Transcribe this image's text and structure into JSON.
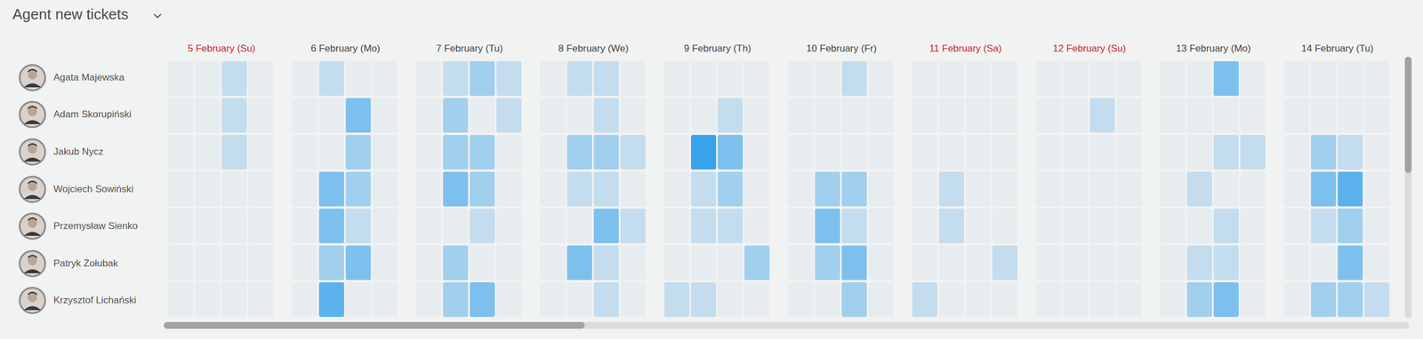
{
  "chart_data": {
    "type": "heatmap",
    "title": "Agent new tickets",
    "rows": [
      "Agata Majewska",
      "Adam Skorupiński",
      "Jakub Nycz",
      "Wojciech Sowiński",
      "Przemysław Sienko",
      "Patryk Żołubak",
      "Krzysztof Lichański"
    ],
    "columns": [
      {
        "label": "5 February (Su)",
        "color": "#c62828"
      },
      {
        "label": "6 February (Mo)",
        "color": "#444444"
      },
      {
        "label": "7 February (Tu)",
        "color": "#444444"
      },
      {
        "label": "8 February (We)",
        "color": "#444444"
      },
      {
        "label": "9 February (Th)",
        "color": "#444444"
      },
      {
        "label": "10 February (Fr)",
        "color": "#444444"
      },
      {
        "label": "11 February (Sa)",
        "color": "#c62828"
      },
      {
        "label": "12 February (Su)",
        "color": "#c62828"
      },
      {
        "label": "13 February (Mo)",
        "color": "#444444"
      },
      {
        "label": "14 February (Tu)",
        "color": "#444444"
      }
    ],
    "values": [
      [
        [
          0,
          0,
          1,
          0
        ],
        [
          0,
          1,
          0,
          0
        ],
        [
          0,
          1,
          2,
          1
        ],
        [
          0,
          1,
          1,
          0
        ],
        [
          0,
          0,
          0,
          0
        ],
        [
          0,
          0,
          1,
          0
        ],
        [
          0,
          0,
          0,
          0
        ],
        [
          0,
          0,
          0,
          0
        ],
        [
          0,
          0,
          3,
          0
        ],
        [
          0,
          0,
          0,
          0
        ]
      ],
      [
        [
          0,
          0,
          1,
          0
        ],
        [
          0,
          0,
          3,
          0
        ],
        [
          0,
          2,
          0,
          1
        ],
        [
          0,
          0,
          1,
          0
        ],
        [
          0,
          0,
          1,
          0
        ],
        [
          0,
          0,
          0,
          0
        ],
        [
          0,
          0,
          0,
          0
        ],
        [
          0,
          0,
          1,
          0
        ],
        [
          0,
          0,
          0,
          0
        ],
        [
          0,
          0,
          0,
          0
        ]
      ],
      [
        [
          0,
          0,
          1,
          0
        ],
        [
          0,
          0,
          2,
          0
        ],
        [
          0,
          2,
          2,
          0
        ],
        [
          0,
          2,
          2,
          1
        ],
        [
          0,
          5,
          3,
          0
        ],
        [
          0,
          0,
          0,
          0
        ],
        [
          0,
          0,
          0,
          0
        ],
        [
          0,
          0,
          0,
          0
        ],
        [
          0,
          0,
          1,
          1
        ],
        [
          0,
          2,
          1,
          0
        ]
      ],
      [
        [
          0,
          0,
          0,
          0
        ],
        [
          0,
          3,
          2,
          0
        ],
        [
          0,
          3,
          2,
          0
        ],
        [
          0,
          1,
          1,
          0
        ],
        [
          0,
          1,
          2,
          0
        ],
        [
          0,
          2,
          2,
          0
        ],
        [
          0,
          1,
          0,
          0
        ],
        [
          0,
          0,
          0,
          0
        ],
        [
          0,
          1,
          0,
          0
        ],
        [
          0,
          3,
          4,
          0
        ]
      ],
      [
        [
          0,
          0,
          0,
          0
        ],
        [
          0,
          3,
          1,
          0
        ],
        [
          0,
          0,
          1,
          0
        ],
        [
          0,
          0,
          3,
          1
        ],
        [
          0,
          1,
          1,
          0
        ],
        [
          0,
          3,
          1,
          0
        ],
        [
          0,
          1,
          0,
          0
        ],
        [
          0,
          0,
          0,
          0
        ],
        [
          0,
          0,
          1,
          0
        ],
        [
          0,
          1,
          2,
          0
        ]
      ],
      [
        [
          0,
          0,
          0,
          0
        ],
        [
          0,
          2,
          3,
          0
        ],
        [
          0,
          2,
          0,
          0
        ],
        [
          0,
          3,
          1,
          0
        ],
        [
          0,
          0,
          0,
          2
        ],
        [
          0,
          2,
          3,
          0
        ],
        [
          0,
          0,
          0,
          1
        ],
        [
          0,
          0,
          0,
          0
        ],
        [
          0,
          1,
          1,
          0
        ],
        [
          0,
          0,
          3,
          0
        ]
      ],
      [
        [
          0,
          0,
          0,
          0
        ],
        [
          0,
          4,
          0,
          0
        ],
        [
          0,
          2,
          3,
          0
        ],
        [
          0,
          0,
          1,
          0
        ],
        [
          1,
          1,
          0,
          0
        ],
        [
          0,
          0,
          2,
          0
        ],
        [
          1,
          0,
          0,
          0
        ],
        [
          0,
          0,
          0,
          0
        ],
        [
          0,
          2,
          3,
          0
        ],
        [
          0,
          2,
          2,
          1
        ]
      ]
    ],
    "color_scale": {
      "range": [
        0,
        5
      ],
      "colors": [
        "#e7ecef",
        "#38a3ec"
      ]
    }
  }
}
